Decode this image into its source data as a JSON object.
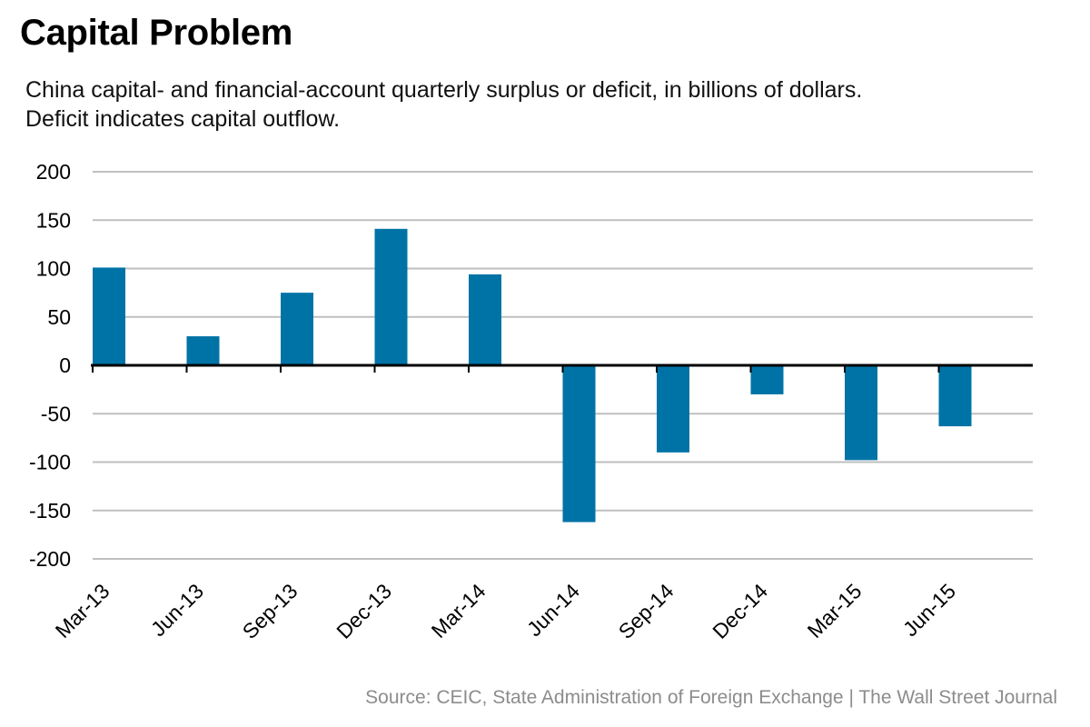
{
  "chart_data": {
    "type": "bar",
    "title": "Capital Problem",
    "subtitle_lines": [
      "China capital- and financial-account quarterly surplus or deficit, in billions of dollars.",
      "Deficit indicates capital outflow."
    ],
    "categories": [
      "Mar-13",
      "Jun-13",
      "Sep-13",
      "Dec-13",
      "Mar-14",
      "Jun-14",
      "Sep-14",
      "Dec-14",
      "Mar-15",
      "Jun-15"
    ],
    "values": [
      101,
      30,
      75,
      141,
      94,
      -162,
      -90,
      -30,
      -98,
      -63
    ],
    "ylim": [
      -200,
      200
    ],
    "yticks": [
      200,
      150,
      100,
      50,
      0,
      -50,
      -100,
      -150,
      -200
    ],
    "xlabel": "",
    "ylabel": "",
    "grid": true,
    "bar_color": "#0073a6",
    "grid_color": "#bfbfbf",
    "source": "Source: CEIC, State Administration of Foreign Exchange  |  The Wall Street Journal"
  }
}
